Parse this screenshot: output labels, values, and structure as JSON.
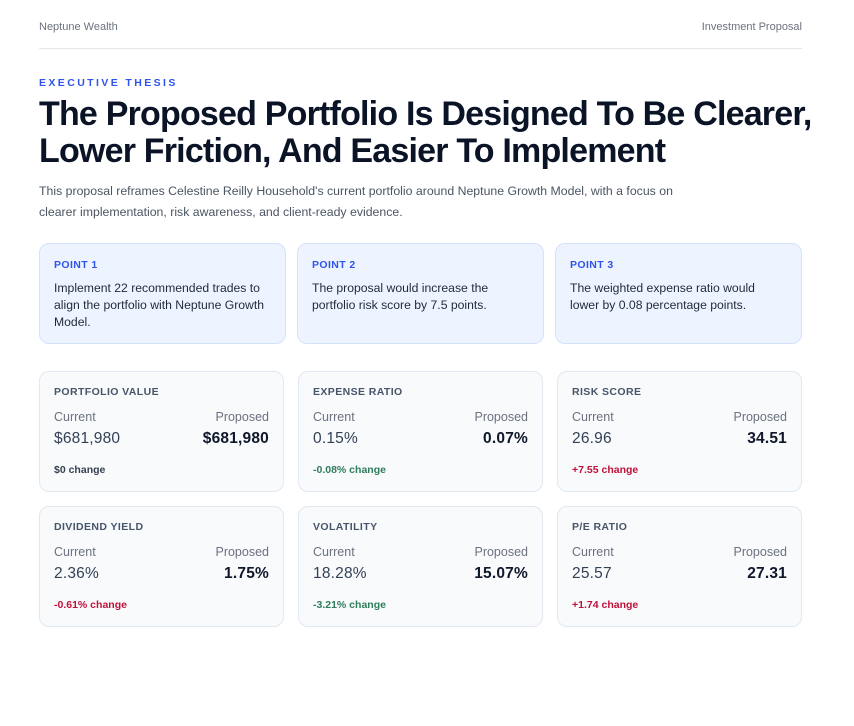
{
  "header": {
    "brand": "Neptune Wealth",
    "doc_type": "Investment Proposal"
  },
  "eyebrow": "EXECUTIVE THESIS",
  "headline": "The Proposed Portfolio Is Designed To Be Clearer, Lower Friction, And Easier To Implement",
  "intro": "This proposal reframes Celestine Reilly Household's current portfolio around Neptune Growth Model, with a focus on clearer implementation, risk awareness, and client-ready evidence.",
  "points": [
    {
      "label": "POINT 1",
      "text": "Implement 22 recommended trades to align the portfolio with Neptune Growth Model."
    },
    {
      "label": "POINT 2",
      "text": "The proposal would increase the portfolio risk score by 7.5 points."
    },
    {
      "label": "POINT 3",
      "text": "The weighted expense ratio would lower by 0.08 percentage points."
    }
  ],
  "column_headers": {
    "current": "Current",
    "proposed": "Proposed"
  },
  "metrics": [
    {
      "label": "PORTFOLIO VALUE",
      "current": "$681,980",
      "proposed": "$681,980",
      "change": "$0 change",
      "tone": "neutral"
    },
    {
      "label": "EXPENSE RATIO",
      "current": "0.15%",
      "proposed": "0.07%",
      "change": "-0.08% change",
      "tone": "good"
    },
    {
      "label": "RISK SCORE",
      "current": "26.96",
      "proposed": "34.51",
      "change": "+7.55 change",
      "tone": "bad"
    },
    {
      "label": "DIVIDEND YIELD",
      "current": "2.36%",
      "proposed": "1.75%",
      "change": "-0.61% change",
      "tone": "bad"
    },
    {
      "label": "VOLATILITY",
      "current": "18.28%",
      "proposed": "15.07%",
      "change": "-3.21% change",
      "tone": "good"
    },
    {
      "label": "P/E RATIO",
      "current": "25.57",
      "proposed": "27.31",
      "change": "+1.74 change",
      "tone": "bad"
    }
  ],
  "colors": {
    "accent": "#2f54eb",
    "positive": "#2e7d5b",
    "negative": "#c0113a",
    "point_bg": "#eef4ff",
    "metric_bg": "#f8fafc"
  }
}
